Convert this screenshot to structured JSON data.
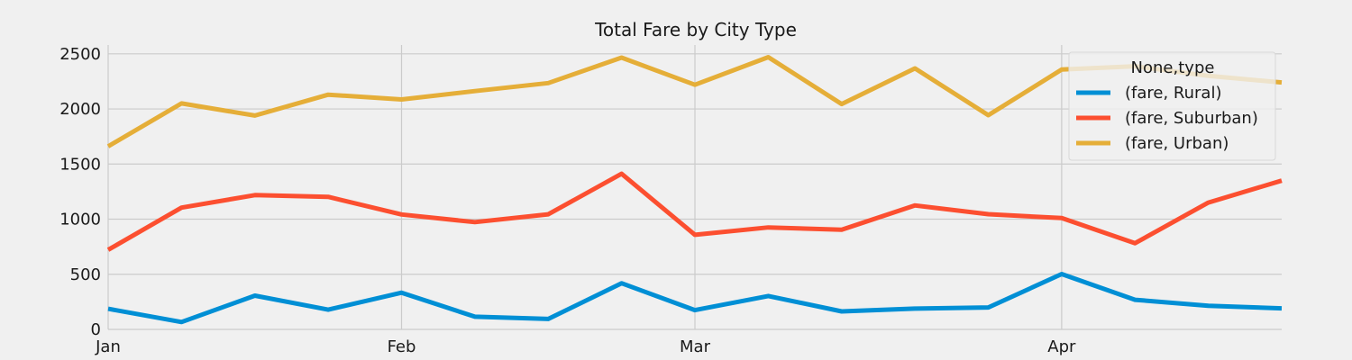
{
  "chart_data": {
    "type": "line",
    "title": "Total Fare by City Type",
    "xlabel": "",
    "ylabel": "",
    "x": [
      "Jan-1",
      "Jan-8",
      "Jan-15",
      "Jan-22",
      "Jan-29",
      "Feb-5",
      "Feb-12",
      "Feb-19",
      "Feb-26",
      "Mar-5",
      "Mar-12",
      "Mar-19",
      "Mar-26",
      "Apr-2",
      "Apr-9",
      "Apr-16",
      "Apr-23"
    ],
    "x_ticks": [
      {
        "label": "Jan",
        "index": 0
      },
      {
        "label": "Feb",
        "index": 4
      },
      {
        "label": "Mar",
        "index": 8
      },
      {
        "label": "Apr",
        "index": 13
      }
    ],
    "y_ticks": [
      0,
      500,
      1000,
      1500,
      2000,
      2500
    ],
    "ylim": [
      0,
      2580
    ],
    "grid": true,
    "legend": {
      "title": "None,type",
      "position": "top-right"
    },
    "series": [
      {
        "name": "(fare, Rural)",
        "color": "#008fd5",
        "values": [
          187,
          67,
          306,
          179,
          333,
          115,
          95,
          419,
          175,
          303,
          163,
          189,
          199,
          502,
          269,
          215,
          191
        ]
      },
      {
        "name": "(fare, Suburban)",
        "color": "#fc4f30",
        "values": [
          722,
          1105,
          1218,
          1203,
          1043,
          973,
          1044,
          1412,
          858,
          925,
          904,
          1124,
          1045,
          1010,
          782,
          1150,
          1350
        ]
      },
      {
        "name": "(fare, Urban)",
        "color": "#e5ae38",
        "values": [
          1661,
          2050,
          1940,
          2129,
          2086,
          2162,
          2235,
          2466,
          2219,
          2470,
          2044,
          2368,
          1943,
          2357,
          2387,
          2300,
          2240
        ]
      }
    ]
  }
}
